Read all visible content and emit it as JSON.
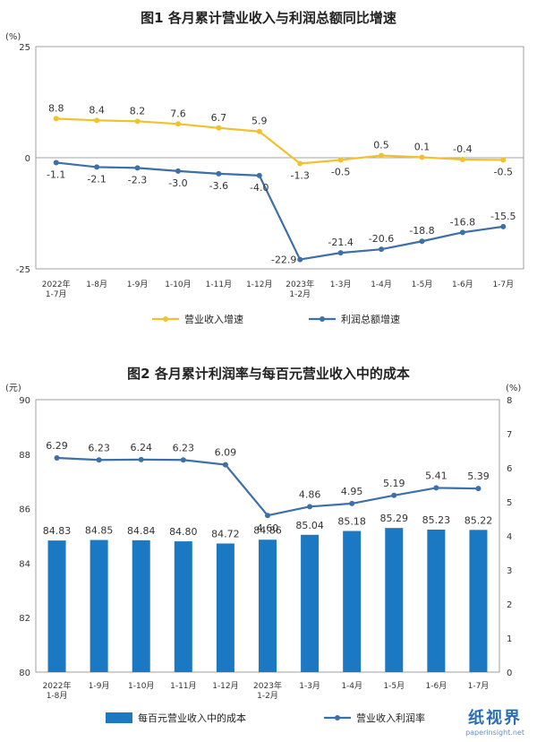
{
  "chart_data": [
    {
      "type": "line",
      "title": "图1  各月累计营业收入与利润总额同比增速",
      "yunit": "(%)",
      "ylim": [
        -25,
        25
      ],
      "yticks": [
        "25",
        "0",
        "-25"
      ],
      "categories": [
        "2022年\n1-7月",
        "1-8月",
        "1-9月",
        "1-10月",
        "1-11月",
        "1-12月",
        "2023年\n1-2月",
        "1-3月",
        "1-4月",
        "1-5月",
        "1-6月",
        "1-7月"
      ],
      "series": [
        {
          "name": "营业收入增速",
          "color": "#f2c12e",
          "values": [
            8.8,
            8.4,
            8.2,
            7.6,
            6.7,
            5.9,
            -1.3,
            -0.5,
            0.5,
            0.1,
            -0.4,
            -0.5
          ],
          "labels": [
            "8.8",
            "8.4",
            "8.2",
            "7.6",
            "6.7",
            "5.9",
            "-1.3",
            "-0.5",
            "0.5",
            "0.1",
            "-0.4",
            "-0.5"
          ]
        },
        {
          "name": "利润总额增速",
          "color": "#3d6fa8",
          "values": [
            -1.1,
            -2.1,
            -2.3,
            -3.0,
            -3.6,
            -4.0,
            -22.9,
            -21.4,
            -20.6,
            -18.8,
            -16.8,
            -15.5
          ],
          "labels": [
            "-1.1",
            "-2.1",
            "-2.3",
            "-3.0",
            "-3.6",
            "-4.0",
            "-22.9",
            "-21.4",
            "-20.6",
            "-18.8",
            "-16.8",
            "-15.5"
          ]
        }
      ],
      "legend": "bottom"
    },
    {
      "type": "bar",
      "title": "图2  各月累计利润率与每百元营业收入中的成本",
      "yunit_left": "(元)",
      "yunit_right": "(%)",
      "ylim_left": [
        80,
        90
      ],
      "yticks_left": [
        "80",
        "82",
        "84",
        "86",
        "88",
        "90"
      ],
      "ylim_right": [
        0,
        8
      ],
      "yticks_right": [
        "0",
        "1",
        "2",
        "3",
        "4",
        "5",
        "6",
        "7",
        "8"
      ],
      "categories": [
        "2022年\n1-8月",
        "1-9月",
        "1-10月",
        "1-11月",
        "1-12月",
        "2023年\n1-2月",
        "1-3月",
        "1-4月",
        "1-5月",
        "1-6月",
        "1-7月"
      ],
      "series": [
        {
          "name": "每百元营业收入中的成本",
          "type": "bar",
          "axis": "left",
          "color": "#1b78c2",
          "values": [
            84.83,
            84.85,
            84.84,
            84.8,
            84.72,
            84.86,
            85.04,
            85.18,
            85.29,
            85.23,
            85.22
          ],
          "labels": [
            "84.83",
            "84.85",
            "84.84",
            "84.80",
            "84.72",
            "84.86",
            "85.04",
            "85.18",
            "85.29",
            "85.23",
            "85.22"
          ]
        },
        {
          "name": "营业收入利润率",
          "type": "line",
          "axis": "right",
          "color": "#3d6fa8",
          "values": [
            6.29,
            6.23,
            6.24,
            6.23,
            6.09,
            4.6,
            4.86,
            4.95,
            5.19,
            5.41,
            5.39
          ],
          "labels": [
            "6.29",
            "6.23",
            "6.24",
            "6.23",
            "6.09",
            "4.60",
            "4.86",
            "4.95",
            "5.19",
            "5.41",
            "5.39"
          ]
        }
      ],
      "legend": "bottom"
    }
  ],
  "watermark": {
    "name": "纸视界",
    "url": "paperinsight.net"
  }
}
